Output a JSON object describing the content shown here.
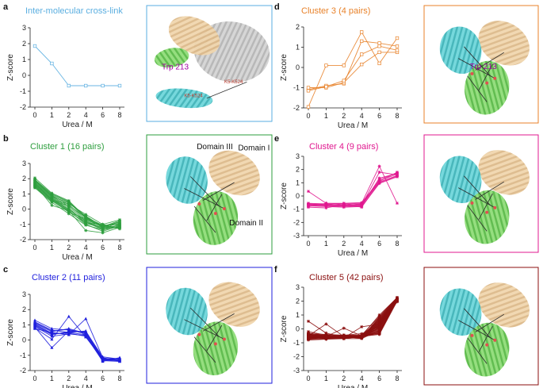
{
  "x_ticks": [
    0,
    1,
    2,
    4,
    6,
    8
  ],
  "chart_data": [
    {
      "panel": "a",
      "type": "line",
      "title": "Inter-molecular cross-link",
      "color": "#5aaee0",
      "xlabel": "Urea / M",
      "ylabel": "Z-score",
      "ylim": [
        -2,
        3
      ],
      "y_ticks": [
        -2,
        -1,
        0,
        1,
        2,
        3
      ],
      "x": [
        0,
        1,
        2,
        4,
        6,
        8
      ],
      "series": [
        {
          "name": "inter-molecular",
          "values": [
            1.85,
            0.75,
            -0.65,
            -0.65,
            -0.65,
            -0.65
          ]
        }
      ],
      "structure": {
        "border_color": "#5aaee0",
        "labels": [
          {
            "text": "Trp 213",
            "color": "#a000a0"
          },
          {
            "text": "K5-K524",
            "color": "#c0392b"
          },
          {
            "text": "K5-K524",
            "color": "#c0392b"
          }
        ]
      }
    },
    {
      "panel": "b",
      "type": "line",
      "title": "Cluster 1 (16 pairs)",
      "color": "#2e9e3e",
      "xlabel": "Urea / M",
      "ylabel": "Z-score",
      "ylim": [
        -2,
        3
      ],
      "y_ticks": [
        -2,
        -1,
        0,
        1,
        2,
        3
      ],
      "x": [
        0,
        1,
        2,
        4,
        6,
        8
      ],
      "series": [
        {
          "values": [
            2.05,
            1.05,
            0.55,
            -0.55,
            -1.05,
            -1.0
          ]
        },
        {
          "values": [
            1.95,
            1.0,
            0.5,
            -0.5,
            -1.1,
            -0.95
          ]
        },
        {
          "values": [
            1.9,
            0.95,
            0.45,
            -0.6,
            -1.2,
            -1.1
          ]
        },
        {
          "values": [
            1.85,
            0.9,
            0.3,
            -0.7,
            -1.15,
            -0.85
          ]
        },
        {
          "values": [
            1.8,
            0.85,
            0.2,
            -0.8,
            -1.3,
            -1.05
          ]
        },
        {
          "values": [
            1.75,
            0.8,
            0.1,
            -0.95,
            -1.2,
            -1.2
          ]
        },
        {
          "values": [
            1.7,
            0.75,
            0.0,
            -0.85,
            -1.35,
            -1.15
          ]
        },
        {
          "values": [
            1.65,
            0.7,
            -0.05,
            -0.75,
            -1.25,
            -0.9
          ]
        },
        {
          "values": [
            1.6,
            0.65,
            -0.1,
            -1.0,
            -1.45,
            -1.1
          ]
        },
        {
          "values": [
            1.55,
            0.6,
            -0.15,
            -0.9,
            -1.0,
            -0.7
          ]
        },
        {
          "values": [
            1.5,
            0.55,
            -0.2,
            -0.65,
            -1.1,
            -1.25
          ]
        },
        {
          "values": [
            1.45,
            0.5,
            0.25,
            -0.55,
            -1.2,
            -0.8
          ]
        },
        {
          "values": [
            1.4,
            0.45,
            -0.3,
            -1.05,
            -1.35,
            -1.0
          ]
        },
        {
          "values": [
            1.6,
            0.25,
            -0.1,
            -1.4,
            -1.55,
            -1.2
          ]
        },
        {
          "values": [
            1.7,
            0.6,
            0.35,
            -0.35,
            -1.0,
            -1.3
          ]
        },
        {
          "values": [
            1.9,
            0.85,
            0.4,
            -0.45,
            -1.15,
            -0.75
          ]
        }
      ],
      "structure": {
        "border_color": "#2e9e3e",
        "labels": [
          {
            "text": "Domain III",
            "color": "#111111"
          },
          {
            "text": "Domain I",
            "color": "#111111"
          },
          {
            "text": "Domain II",
            "color": "#111111"
          }
        ]
      }
    },
    {
      "panel": "c",
      "type": "line",
      "title": "Cluster 2 (11 pairs)",
      "color": "#1f1fdd",
      "xlabel": "Urea / M",
      "ylabel": "Z-score",
      "ylim": [
        -2,
        3
      ],
      "y_ticks": [
        -2,
        -1,
        0,
        1,
        2,
        3
      ],
      "x": [
        0,
        1,
        2,
        4,
        6,
        8
      ],
      "series": [
        {
          "values": [
            1.3,
            0.75,
            0.65,
            0.5,
            -1.25,
            -1.2
          ]
        },
        {
          "values": [
            1.2,
            0.65,
            0.5,
            0.35,
            -1.3,
            -1.35
          ]
        },
        {
          "values": [
            1.1,
            0.55,
            0.75,
            0.45,
            -1.2,
            -1.3
          ]
        },
        {
          "values": [
            1.05,
            0.45,
            0.45,
            0.25,
            -1.35,
            -1.4
          ]
        },
        {
          "values": [
            0.95,
            0.35,
            0.55,
            0.55,
            -1.1,
            -1.25
          ]
        },
        {
          "values": [
            0.9,
            0.25,
            0.4,
            0.3,
            -1.4,
            -1.15
          ]
        },
        {
          "values": [
            0.85,
            -0.5,
            0.6,
            0.5,
            -1.3,
            -1.35
          ]
        },
        {
          "values": [
            0.8,
            0.05,
            1.55,
            0.2,
            -1.25,
            -1.3
          ]
        },
        {
          "values": [
            0.75,
            0.5,
            0.35,
            1.4,
            -1.15,
            -1.4
          ]
        },
        {
          "values": [
            1.15,
            0.6,
            0.7,
            0.4,
            -1.3,
            -1.2
          ]
        },
        {
          "values": [
            1.0,
            0.4,
            0.5,
            0.6,
            -1.2,
            -1.25
          ]
        }
      ],
      "structure": {
        "border_color": "#1f1fdd",
        "labels": []
      }
    },
    {
      "panel": "d",
      "type": "line",
      "title": "Cluster 3 (4 pairs)",
      "color": "#e8822a",
      "xlabel": "Urea / M",
      "ylabel": "Z-score",
      "ylim": [
        -2,
        2
      ],
      "y_ticks": [
        -2,
        -1,
        0,
        1,
        2
      ],
      "x": [
        0,
        1,
        2,
        4,
        6,
        8
      ],
      "series": [
        {
          "values": [
            -1.95,
            0.1,
            0.1,
            1.75,
            0.2,
            1.45
          ]
        },
        {
          "values": [
            -1.1,
            -0.9,
            -0.8,
            1.3,
            1.2,
            1.05
          ]
        },
        {
          "values": [
            -1.0,
            -1.0,
            -0.75,
            0.15,
            0.75,
            0.75
          ]
        },
        {
          "values": [
            -1.15,
            -0.95,
            -0.65,
            0.65,
            1.05,
            0.85
          ]
        }
      ],
      "structure": {
        "border_color": "#e8822a",
        "labels": [
          {
            "text": "Trp 213",
            "color": "#a000a0"
          }
        ]
      }
    },
    {
      "panel": "e",
      "type": "line",
      "title": "Cluster 4 (9 pairs)",
      "color": "#e0188f",
      "xlabel": "Urea / M",
      "ylabel": "Z-score",
      "ylim": [
        -3,
        3
      ],
      "y_ticks": [
        -3,
        -2,
        -1,
        0,
        1,
        2,
        3
      ],
      "x": [
        0,
        1,
        2,
        4,
        6,
        8
      ],
      "series": [
        {
          "values": [
            0.35,
            -0.55,
            -0.6,
            -0.55,
            2.25,
            -0.55
          ]
        },
        {
          "values": [
            -0.55,
            -0.6,
            -0.7,
            -0.65,
            1.15,
            1.65
          ]
        },
        {
          "values": [
            -0.6,
            -0.65,
            -0.7,
            -0.6,
            1.25,
            1.75
          ]
        },
        {
          "values": [
            -0.65,
            -0.7,
            -0.75,
            -0.7,
            1.05,
            1.55
          ]
        },
        {
          "values": [
            -0.7,
            -0.75,
            -0.8,
            -0.75,
            1.35,
            1.7
          ]
        },
        {
          "values": [
            -0.75,
            -0.8,
            -0.85,
            -0.8,
            0.95,
            1.45
          ]
        },
        {
          "values": [
            -0.8,
            -0.55,
            -0.55,
            -0.5,
            1.1,
            1.8
          ]
        },
        {
          "values": [
            -0.85,
            -0.9,
            -0.65,
            -0.85,
            1.0,
            1.5
          ]
        },
        {
          "values": [
            -0.6,
            -0.7,
            -0.6,
            -0.7,
            1.8,
            1.6
          ]
        }
      ],
      "structure": {
        "border_color": "#e0188f",
        "labels": []
      }
    },
    {
      "panel": "f",
      "type": "line",
      "title": "Cluster 5 (42 pairs)",
      "color": "#8b0f0f",
      "xlabel": "Urea / M",
      "ylabel": "Z-score",
      "ylim": [
        -3,
        3
      ],
      "y_ticks": [
        -3,
        -2,
        -1,
        0,
        1,
        2,
        3
      ],
      "x": [
        0,
        1,
        2,
        4,
        6,
        8
      ],
      "series": [
        {
          "values": [
            -0.2,
            -0.45,
            -0.55,
            -0.5,
            1.0,
            2.25
          ]
        },
        {
          "values": [
            -0.3,
            -0.5,
            -0.5,
            -0.55,
            0.6,
            2.2
          ]
        },
        {
          "values": [
            -0.35,
            -0.4,
            -0.45,
            -0.45,
            0.2,
            2.15
          ]
        },
        {
          "values": [
            -0.4,
            -0.45,
            -0.5,
            -0.5,
            -0.2,
            2.1
          ]
        },
        {
          "values": [
            -0.45,
            -0.5,
            -0.55,
            -0.6,
            0.4,
            2.05
          ]
        },
        {
          "values": [
            -0.5,
            -0.55,
            -0.6,
            -0.55,
            -0.4,
            2.0
          ]
        },
        {
          "values": [
            -0.55,
            -0.6,
            -0.6,
            -0.65,
            0.8,
            2.25
          ]
        },
        {
          "values": [
            -0.6,
            -0.55,
            -0.65,
            -0.6,
            0.0,
            2.2
          ]
        },
        {
          "values": [
            -0.65,
            -0.6,
            -0.55,
            -0.5,
            -0.3,
            2.1
          ]
        },
        {
          "values": [
            -0.7,
            -0.65,
            -0.6,
            -0.65,
            0.5,
            2.15
          ]
        },
        {
          "values": [
            -0.75,
            -0.7,
            -0.65,
            -0.6,
            0.3,
            2.0
          ]
        },
        {
          "values": [
            -0.8,
            -0.75,
            -0.7,
            -0.7,
            -0.1,
            2.05
          ]
        },
        {
          "values": [
            -0.55,
            -0.5,
            -0.45,
            -0.35,
            0.15,
            1.95
          ]
        },
        {
          "values": [
            -0.45,
            -0.6,
            -0.7,
            -0.45,
            0.9,
            2.25
          ]
        },
        {
          "values": [
            -0.6,
            -0.7,
            -0.5,
            -0.55,
            0.7,
            2.2
          ]
        },
        {
          "values": [
            -0.5,
            -0.65,
            -0.55,
            -0.6,
            -0.25,
            2.1
          ]
        },
        {
          "values": [
            -0.7,
            -0.45,
            -0.6,
            -0.5,
            0.45,
            2.15
          ]
        },
        {
          "values": [
            -0.65,
            -0.55,
            -0.65,
            -0.55,
            0.1,
            2.05
          ]
        },
        {
          "values": [
            -0.75,
            -0.6,
            -0.55,
            -0.65,
            0.25,
            2.0
          ]
        },
        {
          "values": [
            -0.4,
            -0.55,
            -0.6,
            -0.5,
            0.55,
            2.2
          ]
        },
        {
          "values": [
            -0.35,
            -0.6,
            -0.55,
            -0.6,
            0.05,
            2.15
          ]
        },
        {
          "values": [
            -0.6,
            -0.65,
            -0.7,
            -0.5,
            -0.35,
            2.1
          ]
        },
        {
          "values": [
            -0.5,
            -0.5,
            -0.6,
            -0.6,
            0.35,
            2.25
          ]
        },
        {
          "values": [
            -0.55,
            -0.65,
            -0.5,
            -0.55,
            0.75,
            2.2
          ]
        },
        {
          "values": [
            -0.65,
            -0.5,
            -0.6,
            -0.65,
            -0.05,
            2.05
          ]
        },
        {
          "values": [
            -0.7,
            -0.6,
            -0.65,
            -0.45,
            0.6,
            2.15
          ]
        },
        {
          "values": [
            -0.45,
            -0.55,
            -0.55,
            -0.55,
            0.2,
            2.0
          ]
        },
        {
          "values": [
            -0.6,
            -0.45,
            -0.5,
            -0.6,
            -0.15,
            2.1
          ]
        },
        {
          "values": [
            -0.55,
            -0.7,
            -0.65,
            -0.5,
            0.4,
            2.2
          ]
        },
        {
          "values": [
            -0.5,
            -0.6,
            -0.6,
            -0.65,
            0.85,
            2.25
          ]
        },
        {
          "values": [
            -0.65,
            -0.65,
            -0.55,
            -0.6,
            0.1,
            2.05
          ]
        },
        {
          "values": [
            -0.7,
            -0.55,
            -0.7,
            -0.55,
            -0.2,
            2.15
          ]
        },
        {
          "values": [
            -0.4,
            -0.5,
            -0.45,
            -0.5,
            0.5,
            2.1
          ]
        },
        {
          "values": [
            -0.55,
            -0.6,
            -0.6,
            -0.55,
            0.3,
            2.0
          ]
        },
        {
          "values": [
            -0.6,
            -0.55,
            -0.5,
            -0.6,
            0.65,
            2.2
          ]
        },
        {
          "values": [
            -0.5,
            -0.65,
            -0.65,
            -0.5,
            -0.3,
            2.15
          ]
        },
        {
          "values": [
            -0.65,
            -0.5,
            -0.55,
            -0.65,
            0.15,
            2.1
          ]
        },
        {
          "values": [
            -0.55,
            -0.55,
            -0.6,
            -0.55,
            0.45,
            2.25
          ]
        },
        {
          "values": [
            0.55,
            -0.3,
            -0.6,
            -0.55,
            0.3,
            2.05
          ]
        },
        {
          "values": [
            -0.5,
            0.35,
            -0.55,
            -0.6,
            0.1,
            2.0
          ]
        },
        {
          "values": [
            -0.6,
            -0.55,
            0.05,
            -0.5,
            0.2,
            2.15
          ]
        },
        {
          "values": [
            -0.55,
            -0.6,
            -0.65,
            0.15,
            0.35,
            2.1
          ]
        }
      ],
      "structure": {
        "border_color": "#8b0f0f",
        "labels": []
      }
    }
  ]
}
